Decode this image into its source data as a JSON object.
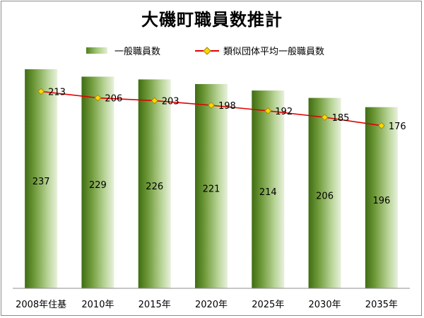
{
  "chart_data": {
    "type": "bar",
    "title": "大磯町職員数推計",
    "categories": [
      "2008年住基",
      "2010年",
      "2015年",
      "2020年",
      "2025年",
      "2030年",
      "2035年"
    ],
    "series": [
      {
        "name": "一般職員数",
        "type": "bar",
        "values": [
          237,
          229,
          226,
          221,
          214,
          206,
          196
        ],
        "color": "#6f9a3a"
      },
      {
        "name": "類似団体平均一般職員数",
        "type": "line",
        "values": [
          213,
          206,
          203,
          198,
          192,
          185,
          176
        ],
        "color": "#e00000",
        "marker_color": "#ffd700"
      }
    ],
    "ylim": [
      0,
      250
    ],
    "xlabel": "",
    "ylabel": "",
    "grid": false,
    "legend_position": "top"
  }
}
